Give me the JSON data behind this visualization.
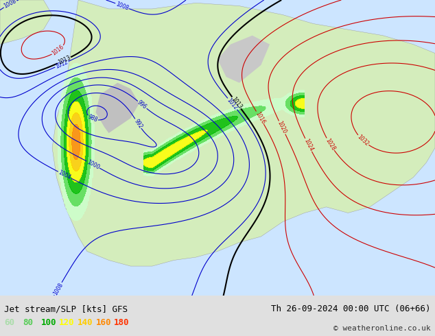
{
  "title_left": "Jet stream/SLP [kts] GFS",
  "title_right": "Th 26-09-2024 00:00 UTC (06+66)",
  "copyright": "© weatheronline.co.uk",
  "legend_values": [
    60,
    80,
    100,
    120,
    140,
    160,
    180
  ],
  "legend_colors": [
    "#aaffaa",
    "#00cc00",
    "#00aa00",
    "#ffff00",
    "#ffaa00",
    "#ff5500",
    "#ff0000"
  ],
  "bg_color": "#e8e8e8",
  "land_color": "#d4edbc",
  "ocean_color": "#cce5ff",
  "slp_blue_color": "#0000cc",
  "slp_red_color": "#cc0000",
  "slp_black_color": "#000000",
  "jet_colors": [
    "#ccffcc",
    "#55dd55",
    "#00bb00",
    "#ffff00",
    "#ffcc00",
    "#ff8800",
    "#ff3300"
  ],
  "jet_levels": [
    60,
    80,
    100,
    120,
    140,
    160,
    180,
    300
  ],
  "figsize": [
    6.34,
    4.9
  ],
  "dpi": 100
}
